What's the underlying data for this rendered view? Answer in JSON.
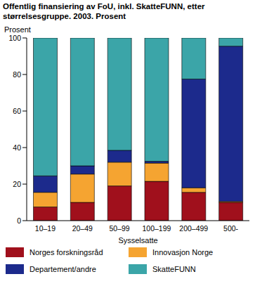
{
  "chart_data": {
    "type": "bar",
    "title": "Offentlig finansiering av FoU, inkl. SkatteFUNN, etter størrelsesgruppe. 2003. Prosent",
    "y_label": "Prosent",
    "x_label": "Sysselsatte",
    "categories": [
      "10–19",
      "20–49",
      "50–99",
      "100–199",
      "200–499",
      "500-"
    ],
    "series": [
      {
        "name": "Norges forskningsråd",
        "color": "#a0101c",
        "values": [
          7.5,
          10,
          19,
          21.5,
          15.5,
          10
        ]
      },
      {
        "name": "Innovasjon Norge",
        "color": "#f5a431",
        "values": [
          8,
          15.5,
          13,
          10,
          2.5,
          0.5
        ]
      },
      {
        "name": "Departement/andre",
        "color": "#1c2a8c",
        "values": [
          9,
          4.5,
          6.5,
          1,
          59.5,
          85
        ]
      },
      {
        "name": "SkatteFUNN",
        "color": "#3ba5a8",
        "values": [
          75.5,
          70,
          61.5,
          67.5,
          22.5,
          4.5
        ]
      }
    ],
    "ylim": [
      0,
      100
    ],
    "yticks": [
      0,
      20,
      40,
      60,
      80,
      100
    ],
    "stacked": true,
    "grid": false,
    "legend": "bottom"
  }
}
